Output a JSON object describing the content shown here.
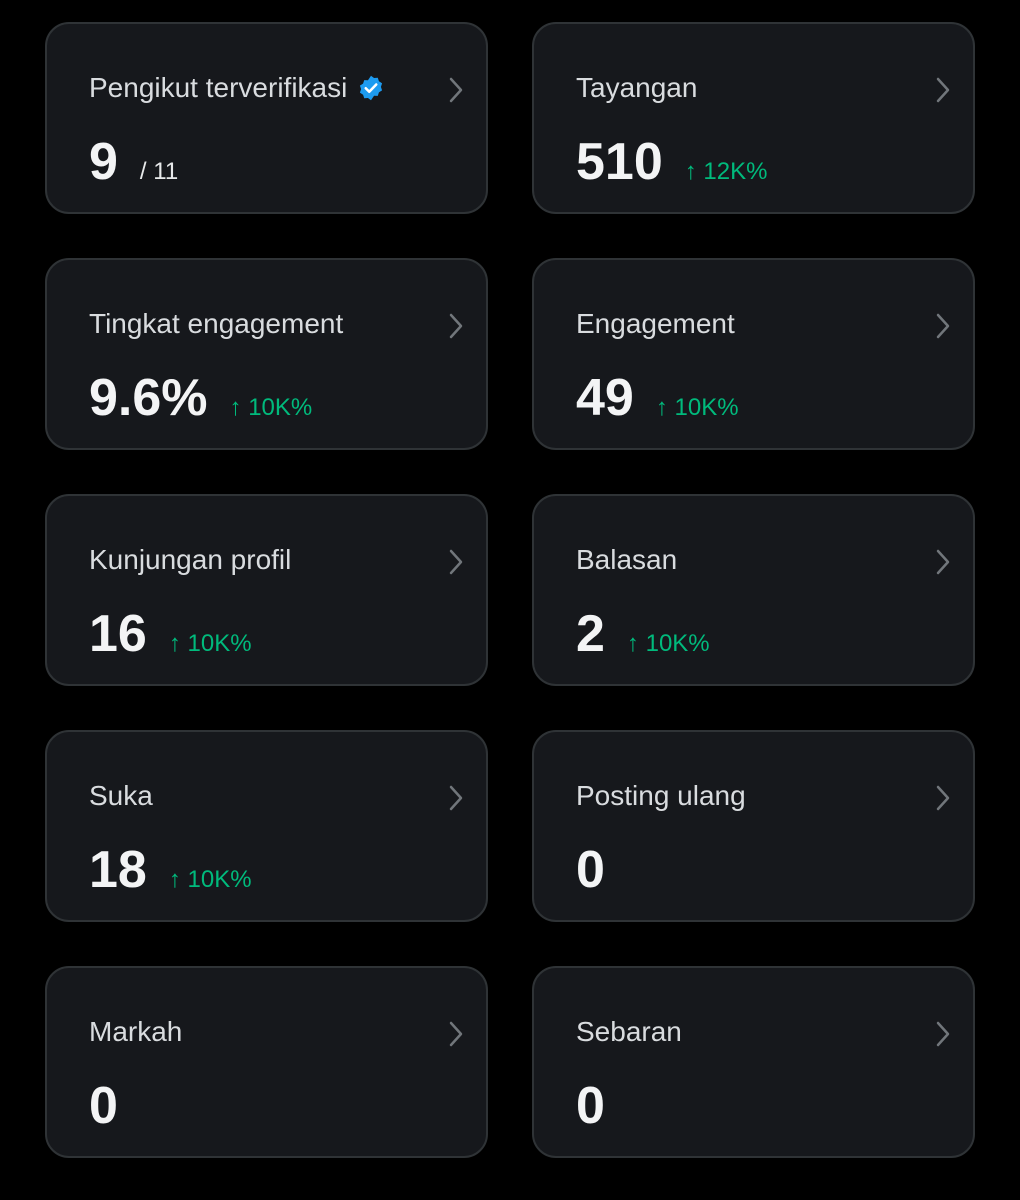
{
  "cards": [
    {
      "title": "Pengikut terverifikasi",
      "verified": true,
      "value": "9",
      "total": "/ 11"
    },
    {
      "title": "Tayangan",
      "value": "510",
      "change": "↑ 12K%"
    },
    {
      "title": "Tingkat engagement",
      "value": "9.6%",
      "change": "↑ 10K%"
    },
    {
      "title": "Engagement",
      "value": "49",
      "change": "↑ 10K%"
    },
    {
      "title": "Kunjungan profil",
      "value": "16",
      "change": "↑ 10K%"
    },
    {
      "title": "Balasan",
      "value": "2",
      "change": "↑ 10K%"
    },
    {
      "title": "Suka",
      "value": "18",
      "change": "↑ 10K%"
    },
    {
      "title": "Posting ulang",
      "value": "0"
    },
    {
      "title": "Markah",
      "value": "0"
    },
    {
      "title": "Sebaran",
      "value": "0"
    }
  ]
}
